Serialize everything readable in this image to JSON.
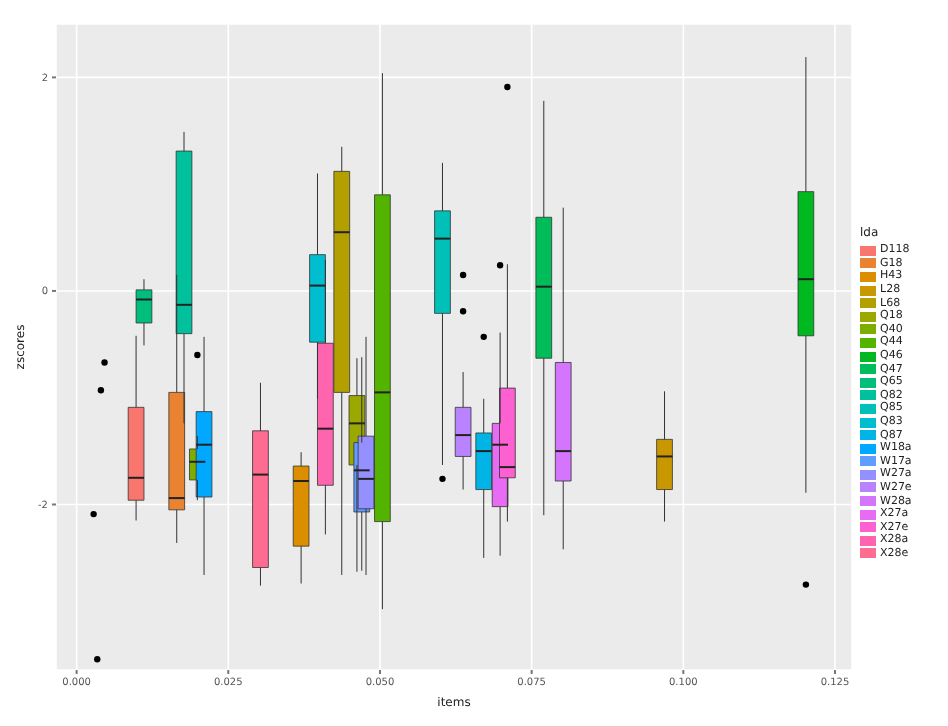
{
  "chart_data": {
    "type": "box",
    "xlabel": "items",
    "ylabel": "zscores",
    "legend_title": "lda",
    "xlim": [
      -0.0034,
      0.1278
    ],
    "xticks": [
      {
        "value": 0,
        "label": "0.000"
      },
      {
        "value": 0.025,
        "label": "0.025"
      },
      {
        "value": 0.05,
        "label": "0.050"
      },
      {
        "value": 0.075,
        "label": "0.075"
      },
      {
        "value": 0.1,
        "label": "0.100"
      },
      {
        "value": 0.125,
        "label": "0.125"
      }
    ],
    "ylim": [
      -3.55,
      2.5
    ],
    "yticks": [
      -2,
      0,
      2
    ],
    "grid": true,
    "legend": "right",
    "series": [
      {
        "name": "D118",
        "color": "#f8766d",
        "x": [
          0.0098
        ],
        "boxes": [
          {
            "low": -2.15,
            "q1": -1.96,
            "median": -1.75,
            "q3": -1.09,
            "high": -0.42
          }
        ]
      },
      {
        "name": "G18",
        "color": "#ea8331",
        "x": [
          0.0165
        ],
        "boxes": [
          {
            "low": -2.36,
            "q1": -2.05,
            "median": -1.94,
            "q3": -0.95,
            "high": 0.15
          }
        ]
      },
      {
        "name": "H43",
        "color": "#db8e00",
        "x": [
          0.037
        ],
        "boxes": [
          {
            "low": -2.74,
            "q1": -2.39,
            "median": -1.78,
            "q3": -1.64,
            "high": -1.51
          }
        ]
      },
      {
        "name": "L28",
        "color": "#c99800",
        "x": [
          0.0969
        ],
        "boxes": [
          {
            "low": -2.16,
            "q1": -1.86,
            "median": -1.55,
            "q3": -1.39,
            "high": -0.94
          }
        ]
      },
      {
        "name": "L68",
        "color": "#b3a000",
        "x": [
          0.0437
        ],
        "boxes": [
          {
            "low": -2.66,
            "q1": -0.95,
            "median": 0.55,
            "q3": 1.12,
            "high": 1.35
          }
        ]
      },
      {
        "name": "Q18",
        "color": "#9aa800",
        "x": [
          0.0462
        ],
        "boxes": [
          {
            "low": -2.63,
            "q1": -1.63,
            "median": -1.24,
            "q3": -0.98,
            "high": -0.63
          }
        ]
      },
      {
        "name": "Q40",
        "color": "#7cae00",
        "x": [
          0.0199
        ],
        "boxes": [
          {
            "low": -1.96,
            "q1": -1.77,
            "median": -1.6,
            "q3": -1.48,
            "high": -1.36,
            "outliers": [
              -0.6
            ]
          }
        ]
      },
      {
        "name": "Q44",
        "color": "#53b400",
        "x": [
          0.0504
        ],
        "boxes": [
          {
            "low": -2.98,
            "q1": -2.16,
            "median": -0.95,
            "q3": 0.9,
            "high": 2.04
          }
        ]
      },
      {
        "name": "Q46",
        "color": "#00b81f",
        "x": [
          0.1202
        ],
        "boxes": [
          {
            "low": -1.89,
            "q1": -0.42,
            "median": 0.11,
            "q3": 0.93,
            "high": 2.19,
            "outliers": [
              -2.75
            ]
          }
        ]
      },
      {
        "name": "Q47",
        "color": "#00bc59",
        "x": [
          0.077
        ],
        "boxes": [
          {
            "low": -2.1,
            "q1": -0.63,
            "median": 0.04,
            "q3": 0.69,
            "high": 1.78
          }
        ]
      },
      {
        "name": "Q65",
        "color": "#00bf7d",
        "x": [
          0.0111
        ],
        "boxes": [
          {
            "low": -0.51,
            "q1": -0.3,
            "median": -0.08,
            "q3": 0.01,
            "high": 0.11
          }
        ]
      },
      {
        "name": "Q82",
        "color": "#00c19c",
        "x": [
          0.0177
        ],
        "boxes": [
          {
            "low": -1.24,
            "q1": -0.4,
            "median": -0.13,
            "q3": 1.31,
            "high": 1.49
          }
        ]
      },
      {
        "name": "Q85",
        "color": "#00c0b8",
        "x": [
          0.0603
        ],
        "boxes": [
          {
            "low": -1.63,
            "q1": -0.21,
            "median": 0.49,
            "q3": 0.75,
            "high": 1.2,
            "outliers": [
              -1.76
            ]
          }
        ]
      },
      {
        "name": "Q83",
        "color": "#00bdd0",
        "x": [
          0.0397
        ],
        "boxes": [
          {
            "low": -1.01,
            "q1": -0.48,
            "median": 0.05,
            "q3": 0.34,
            "high": 1.1
          }
        ]
      },
      {
        "name": "Q87",
        "color": "#00b5e6",
        "x": [
          0.0671
        ],
        "boxes": [
          {
            "low": -2.5,
            "q1": -1.86,
            "median": -1.5,
            "q3": -1.33,
            "high": -1.01,
            "outliers": [
              -0.43
            ]
          }
        ]
      },
      {
        "name": "W18a",
        "color": "#00a9ff",
        "x": [
          0.021
        ],
        "boxes": [
          {
            "low": -2.66,
            "q1": -1.93,
            "median": -1.44,
            "q3": -1.13,
            "high": -0.43
          }
        ]
      },
      {
        "name": "W17a",
        "color": "#619cff",
        "x": [
          0.047
        ],
        "boxes": [
          {
            "low": -2.62,
            "q1": -2.07,
            "median": -1.68,
            "q3": -1.42,
            "high": -0.62
          }
        ]
      },
      {
        "name": "W27a",
        "color": "#9590ff",
        "x": [
          0.0477
        ],
        "boxes": [
          {
            "low": -2.66,
            "q1": -2.04,
            "median": -1.76,
            "q3": -1.36,
            "high": -0.43
          }
        ]
      },
      {
        "name": "W27e",
        "color": "#b983ff",
        "x": [
          0.0637
        ],
        "boxes": [
          {
            "low": -1.86,
            "q1": -1.55,
            "median": -1.35,
            "q3": -1.09,
            "high": -0.76,
            "outliers": [
              0.15,
              -0.19
            ]
          }
        ]
      },
      {
        "name": "W28a",
        "color": "#d575fe",
        "x": [
          0.0802
        ],
        "boxes": [
          {
            "low": -2.42,
            "q1": -1.78,
            "median": -1.5,
            "q3": -0.67,
            "high": 0.78
          }
        ]
      },
      {
        "name": "X27a",
        "color": "#e76bf3",
        "x": [
          0.0698
        ],
        "boxes": [
          {
            "low": -2.48,
            "q1": -2.02,
            "median": -1.44,
            "q3": -1.24,
            "high": -0.39,
            "outliers": [
              0.24
            ]
          }
        ]
      },
      {
        "name": "X27e",
        "color": "#fd61d1",
        "x": [
          0.071
        ],
        "boxes": [
          {
            "low": -2.16,
            "q1": -1.75,
            "median": -1.65,
            "q3": -0.91,
            "high": 0.25,
            "outliers": [
              1.91
            ]
          }
        ]
      },
      {
        "name": "X28a",
        "color": "#ff65ae",
        "x": [
          0.041
        ],
        "boxes": [
          {
            "low": -2.28,
            "q1": -1.82,
            "median": -1.29,
            "q3": -0.49,
            "high": 0.29
          }
        ]
      },
      {
        "name": "X28e",
        "color": "#ff6c91",
        "x": [
          0.0303
        ],
        "boxes": [
          {
            "low": -2.76,
            "q1": -2.59,
            "median": -1.72,
            "q3": -1.31,
            "high": -0.86
          }
        ]
      },
      {
        "type": "scatter",
        "color": "#000000",
        "x": [
          0.0046,
          0.004,
          0.0028,
          0.0034
        ],
        "values": [
          -0.67,
          -0.93,
          -2.09,
          -3.45
        ]
      }
    ]
  }
}
